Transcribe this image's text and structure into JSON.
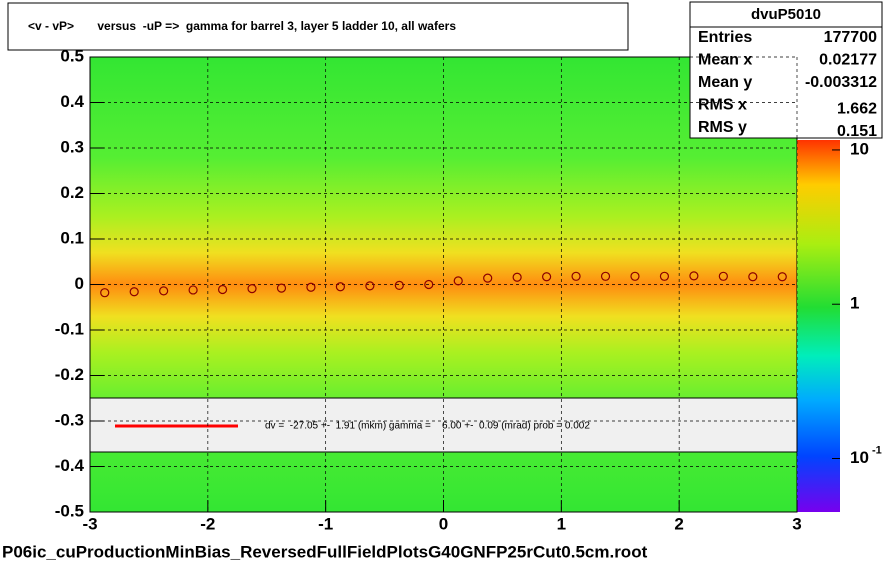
{
  "chart_data": {
    "type": "profile2d",
    "title": "<v - vP>       versus  -uP =>  gamma for barrel 3, layer 5 ladder 10, all wafers",
    "footer": "P06ic_cuProductionMinBias_ReversedFullFieldPlotsG40GNFP25rCut0.5cm.root",
    "fit_label": "dv =  -27.05 +-  1.91 (mkm) gamma =    6.00 +-  0.09 (mrad) prob = 0.002",
    "stats": {
      "name": "dvuP5010",
      "rows": [
        {
          "label": "Entries",
          "value": 177700
        },
        {
          "label": "Mean x",
          "value": 0.02177
        },
        {
          "label": "Mean y",
          "value": -0.003312
        },
        {
          "label": "RMS x",
          "value": 1.662
        },
        {
          "label": "RMS y",
          "value": 0.151
        }
      ]
    },
    "x": [
      -2.875,
      -2.625,
      -2.375,
      -2.125,
      -1.875,
      -1.625,
      -1.375,
      -1.125,
      -0.875,
      -0.625,
      -0.375,
      -0.125,
      0.125,
      0.375,
      0.625,
      0.875,
      1.125,
      1.375,
      1.625,
      1.875,
      2.125,
      2.375,
      2.625,
      2.875
    ],
    "values": [
      -0.018,
      -0.016,
      -0.014,
      -0.012,
      -0.011,
      -0.009,
      -0.008,
      -0.006,
      -0.005,
      -0.003,
      -0.002,
      0.0,
      0.008,
      0.014,
      0.016,
      0.017,
      0.018,
      0.018,
      0.018,
      0.018,
      0.019,
      0.018,
      0.017,
      0.017
    ],
    "color": "#8b0000",
    "fit_color": "#ff0000",
    "xlim": [
      -3,
      3
    ],
    "xticks": [
      -3,
      -2,
      -1,
      0,
      1,
      2,
      3
    ],
    "ylim": [
      -0.5,
      0.5
    ],
    "yticks": [
      -0.5,
      -0.4,
      -0.3,
      -0.2,
      -0.1,
      0,
      0.1,
      0.2,
      0.3,
      0.4,
      0.5
    ],
    "zlim": [
      0.045,
      11.6
    ],
    "zlog": true,
    "zticks": [
      {
        "value": 10,
        "label": "10"
      },
      {
        "value": 1,
        "label": "1"
      },
      {
        "value": 0.1,
        "label": "10",
        "exponent": "-1"
      }
    ],
    "grid": true
  }
}
